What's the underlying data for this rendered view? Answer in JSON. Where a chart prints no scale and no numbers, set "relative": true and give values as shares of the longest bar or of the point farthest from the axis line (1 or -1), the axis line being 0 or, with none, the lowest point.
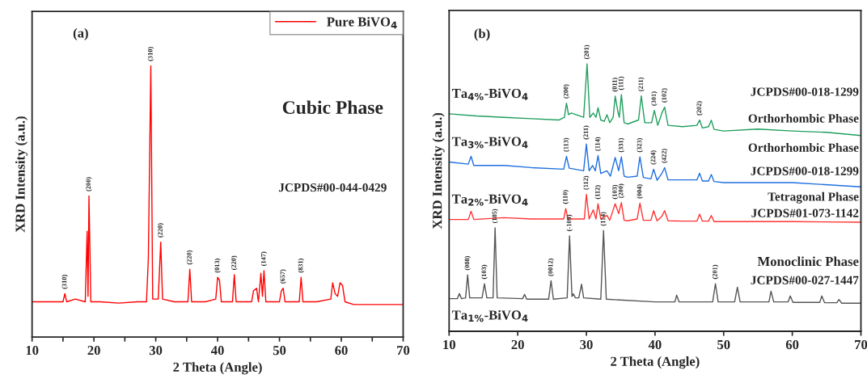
{
  "chart_data": [
    {
      "type": "line",
      "relative": true,
      "xlabel": "2 Theta (Angle)",
      "ylabel": "XRD Intensity (a.u.)",
      "xlim": [
        10,
        70
      ],
      "xticks": [
        10,
        {
          "value": 15,
          "label": null
        },
        20,
        {
          "value": 25,
          "label": null
        },
        30,
        {
          "value": 35,
          "label": null
        },
        40,
        {
          "value": 45,
          "label": null
        },
        50,
        {
          "value": 55,
          "label": null
        },
        60,
        {
          "value": 65,
          "label": null
        },
        70
      ],
      "legend": "top right",
      "grid": false,
      "series": [
        {
          "name": "Pure BiVO$_{4}$",
          "color": "#ff0000",
          "x": [
            10,
            12,
            14,
            15.0,
            15.3,
            15.6,
            17,
            18.6,
            18.9,
            19.05,
            19.2,
            19.5,
            21,
            24,
            27,
            28.5,
            28.8,
            29.2,
            29.5,
            30.4,
            30.8,
            31.1,
            33,
            35.2,
            35.5,
            35.8,
            38,
            39.7,
            40.0,
            40.3,
            40.6,
            42.4,
            42.7,
            43.0,
            45.5,
            45.8,
            46.3,
            46.6,
            47.0,
            47.25,
            47.5,
            47.8,
            49,
            50.0,
            50.3,
            50.6,
            50.9,
            53.2,
            53.5,
            53.8,
            56,
            58.3,
            58.6,
            59.0,
            59.4,
            59.8,
            60.2,
            60.6,
            62,
            66,
            70
          ],
          "values": [
            0.13,
            0.13,
            0.13,
            0.13,
            0.16,
            0.13,
            0.14,
            0.13,
            0.39,
            0.15,
            0.52,
            0.13,
            0.13,
            0.125,
            0.13,
            0.13,
            0.29,
            1.0,
            0.14,
            0.14,
            0.35,
            0.14,
            0.13,
            0.13,
            0.25,
            0.13,
            0.13,
            0.14,
            0.22,
            0.21,
            0.13,
            0.13,
            0.23,
            0.13,
            0.13,
            0.17,
            0.18,
            0.13,
            0.235,
            0.15,
            0.245,
            0.13,
            0.13,
            0.13,
            0.17,
            0.18,
            0.13,
            0.13,
            0.22,
            0.13,
            0.13,
            0.14,
            0.2,
            0.16,
            0.15,
            0.2,
            0.19,
            0.13,
            0.12,
            0.12,
            0.12
          ]
        }
      ],
      "annotations": [
        "(a)",
        "Cubic Phase",
        "JCPDS#00-044-0429",
        {
          "text": "(310)",
          "x": 15.3,
          "y": 0.16
        },
        {
          "text": "(200)",
          "x": 19.2,
          "y": 0.52
        },
        {
          "text": "(310)",
          "x": 29.2,
          "y": 1.0
        },
        {
          "text": "(220)",
          "x": 30.8,
          "y": 0.35
        },
        {
          "text": "(220)",
          "x": 35.5,
          "y": 0.25
        },
        {
          "text": "(013)",
          "x": 40.0,
          "y": 0.22
        },
        {
          "text": "(220)",
          "x": 42.7,
          "y": 0.23
        },
        {
          "text": "(147)",
          "x": 47.5,
          "y": 0.245
        },
        {
          "text": "(657)",
          "x": 50.6,
          "y": 0.18
        },
        {
          "text": "(831)",
          "x": 53.5,
          "y": 0.22
        }
      ]
    },
    {
      "type": "line",
      "relative": true,
      "xlabel": "2 Theta (Angle)",
      "ylabel": "XRD Intensity (a.u.)",
      "xlim": [
        10,
        70
      ],
      "xticks": [
        10,
        20,
        30,
        40,
        50,
        60,
        70
      ],
      "legend": false,
      "grid": false,
      "series": [
        {
          "name": "Ta$_{4%}$-BiVO$_{4}$",
          "color": "#1f9e5e",
          "x": [
            10,
            14,
            18,
            22,
            26,
            26.8,
            27.1,
            27.4,
            27.8,
            29.6,
            30.1,
            30.5,
            31.0,
            31.4,
            31.7,
            32.1,
            32.6,
            33.0,
            33.4,
            33.9,
            34.2,
            34.6,
            34.8,
            35.1,
            35.5,
            36,
            37.6,
            38.0,
            38.5,
            39.5,
            39.9,
            40.4,
            40.8,
            41.0,
            41.4,
            41.9,
            44,
            46.1,
            46.5,
            46.9,
            47.8,
            48.2,
            48.6,
            50,
            55,
            60,
            65,
            70
          ],
          "values": [
            0.813,
            0.805,
            0.8,
            0.795,
            0.79,
            0.8,
            0.853,
            0.81,
            0.816,
            0.8,
            1.0,
            0.8,
            0.816,
            0.8,
            0.836,
            0.79,
            0.785,
            0.81,
            0.78,
            0.8,
            0.879,
            0.82,
            0.8,
            0.885,
            0.78,
            0.775,
            0.79,
            0.88,
            0.78,
            0.78,
            0.826,
            0.77,
            0.8,
            0.816,
            0.838,
            0.77,
            0.765,
            0.77,
            0.79,
            0.76,
            0.765,
            0.789,
            0.755,
            0.749,
            0.756,
            0.749,
            0.744,
            0.732
          ]
        },
        {
          "name": "Ta$_{3%}$-BiVO$_{4}$",
          "color": "#1f6fe0",
          "x": [
            10,
            12.8,
            13.2,
            13.6,
            18,
            22,
            26.7,
            27.1,
            27.5,
            29.6,
            30.0,
            30.4,
            30.9,
            31.3,
            31.7,
            32.1,
            33.0,
            33.5,
            34.2,
            34.7,
            35.1,
            35.5,
            36,
            37.4,
            37.8,
            38.3,
            39.4,
            39.8,
            40.3,
            41.0,
            41.4,
            41.9,
            44,
            46.1,
            46.5,
            46.9,
            47.8,
            48.2,
            48.6,
            50,
            60,
            70
          ],
          "values": [
            0.633,
            0.625,
            0.654,
            0.62,
            0.62,
            0.612,
            0.606,
            0.654,
            0.61,
            0.6,
            0.7,
            0.6,
            0.62,
            0.6,
            0.657,
            0.59,
            0.6,
            0.58,
            0.65,
            0.6,
            0.652,
            0.58,
            0.576,
            0.58,
            0.652,
            0.575,
            0.57,
            0.606,
            0.565,
            0.59,
            0.612,
            0.566,
            0.566,
            0.566,
            0.591,
            0.562,
            0.562,
            0.586,
            0.56,
            0.556,
            0.556,
            0.54
          ]
        },
        {
          "name": "Ta$_{2%}$-BiVO$_{4}$",
          "color": "#ff3333",
          "x": [
            10,
            12.8,
            13.2,
            13.6,
            18,
            22,
            26.7,
            27.0,
            27.3,
            29.7,
            30.0,
            30.4,
            31.0,
            31.4,
            31.7,
            32.1,
            33.0,
            33.4,
            34.2,
            34.7,
            35.1,
            35.5,
            36,
            37.4,
            37.8,
            38.3,
            39.4,
            39.8,
            40.3,
            41.0,
            41.4,
            41.9,
            44,
            46.1,
            46.5,
            46.9,
            47.8,
            48.2,
            48.6,
            50,
            60,
            70
          ],
          "values": [
            0.418,
            0.418,
            0.449,
            0.418,
            0.425,
            0.42,
            0.42,
            0.459,
            0.42,
            0.42,
            0.512,
            0.42,
            0.454,
            0.42,
            0.477,
            0.42,
            0.433,
            0.415,
            0.477,
            0.44,
            0.481,
            0.415,
            0.413,
            0.42,
            0.479,
            0.415,
            0.415,
            0.451,
            0.413,
            0.43,
            0.451,
            0.413,
            0.412,
            0.412,
            0.438,
            0.412,
            0.412,
            0.433,
            0.41,
            0.41,
            0.41,
            0.408
          ]
        },
        {
          "name": "Ta$_{1%}$-BiVO$_{4}$",
          "color": "#555555",
          "x": [
            10,
            11.2,
            11.5,
            11.8,
            12.4,
            12.7,
            13.0,
            14.8,
            15.15,
            15.5,
            16.4,
            16.7,
            17.0,
            20.7,
            21.0,
            21.3,
            24.5,
            24.85,
            25.2,
            27.2,
            27.55,
            27.9,
            28.1,
            28.4,
            28.9,
            29.3,
            29.6,
            32.1,
            32.5,
            32.9,
            40,
            42.9,
            43.15,
            43.5,
            48.4,
            48.8,
            49.2,
            51.6,
            52.0,
            52.4,
            56.6,
            56.9,
            57.3,
            59.4,
            59.7,
            60.1,
            64.0,
            64.3,
            64.7,
            66.5,
            66.8,
            67.2,
            70
          ],
          "values": [
            0.122,
            0.122,
            0.141,
            0.122,
            0.125,
            0.211,
            0.125,
            0.125,
            0.178,
            0.125,
            0.125,
            0.387,
            0.125,
            0.122,
            0.138,
            0.12,
            0.12,
            0.189,
            0.12,
            0.125,
            0.357,
            0.13,
            0.14,
            0.125,
            0.125,
            0.176,
            0.125,
            0.12,
            0.377,
            0.12,
            0.11,
            0.11,
            0.135,
            0.11,
            0.11,
            0.178,
            0.11,
            0.11,
            0.165,
            0.11,
            0.11,
            0.15,
            0.11,
            0.11,
            0.132,
            0.108,
            0.108,
            0.132,
            0.107,
            0.107,
            0.119,
            0.105,
            0.105
          ]
        }
      ],
      "annotations": [
        "(b)",
        "JCPDS#00-018-1299",
        "Orthorhombic Phase",
        "Orthorhombic Phase",
        "JCPDS#00-018-1299",
        "Tetragonal Phase",
        "JCPDS#01-073-1142",
        "Monoclinic Phase",
        "JCPDS#00-027-1447",
        {
          "text": "(200)",
          "x": 27.1,
          "y": 0.853
        },
        {
          "text": "(201)",
          "x": 30.1,
          "y": 1.0
        },
        {
          "text": "(011)",
          "x": 34.2,
          "y": 0.879
        },
        {
          "text": "(111)",
          "x": 35.1,
          "y": 0.885
        },
        {
          "text": "(211)",
          "x": 38.0,
          "y": 0.88
        },
        {
          "text": "(301)",
          "x": 39.9,
          "y": 0.826
        },
        {
          "text": "(102)",
          "x": 41.4,
          "y": 0.838
        },
        {
          "text": "(202)",
          "x": 46.5,
          "y": 0.79
        },
        {
          "text": "(113)",
          "x": 27.1,
          "y": 0.654
        },
        {
          "text": "(211)",
          "x": 30.0,
          "y": 0.7
        },
        {
          "text": "(114)",
          "x": 31.7,
          "y": 0.657
        },
        {
          "text": "(331)",
          "x": 35.1,
          "y": 0.652
        },
        {
          "text": "(323)",
          "x": 37.8,
          "y": 0.652
        },
        {
          "text": "(224)",
          "x": 39.8,
          "y": 0.606
        },
        {
          "text": "(422)",
          "x": 41.4,
          "y": 0.612
        },
        {
          "text": "(110)",
          "x": 27.0,
          "y": 0.459
        },
        {
          "text": "(112)",
          "x": 30.0,
          "y": 0.512
        },
        {
          "text": "(112)",
          "x": 31.7,
          "y": 0.477
        },
        {
          "text": "(103)",
          "x": 34.2,
          "y": 0.477
        },
        {
          "text": "(200)",
          "x": 35.1,
          "y": 0.481
        },
        {
          "text": "(004)",
          "x": 37.8,
          "y": 0.479
        },
        {
          "text": "(008)",
          "x": 12.7,
          "y": 0.211
        },
        {
          "text": "(103)",
          "x": 15.15,
          "y": 0.178
        },
        {
          "text": "(105)",
          "x": 16.7,
          "y": 0.387
        },
        {
          "text": "(0012)",
          "x": 24.85,
          "y": 0.189
        },
        {
          "text": "(-109)",
          "x": 27.55,
          "y": 0.357
        },
        {
          "text": "(114)",
          "x": 32.5,
          "y": 0.377
        },
        {
          "text": "(201)",
          "x": 48.8,
          "y": 0.178
        }
      ]
    }
  ]
}
